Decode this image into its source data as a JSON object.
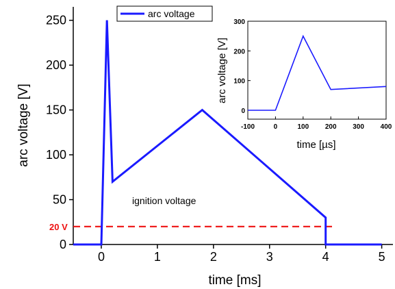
{
  "colors": {
    "series": "#1a1aff",
    "threshold": "#ee1111",
    "axis": "#000000"
  },
  "chart_data": [
    {
      "type": "line",
      "xlabel": "time [ms]",
      "ylabel": "arc voltage [V]",
      "xlim": [
        -0.5,
        5.2
      ],
      "ylim": [
        0,
        265
      ],
      "xticks": [
        0,
        1,
        2,
        3,
        4,
        5
      ],
      "yticks": [
        0,
        50,
        100,
        150,
        200,
        250
      ],
      "series": [
        {
          "name": "arc voltage",
          "x": [
            -0.5,
            0.0,
            0.1,
            0.2,
            1.8,
            4.0,
            4.0,
            5.0
          ],
          "y": [
            0,
            0,
            250,
            70,
            150,
            30,
            0,
            0
          ]
        }
      ],
      "legend": {
        "position": "top-center",
        "entries": [
          "arc voltage"
        ]
      },
      "annotations": [
        {
          "text": "ignition voltage",
          "x": 0.55,
          "y": 45
        }
      ],
      "threshold": {
        "value": 20,
        "label": "20 V"
      }
    },
    {
      "type": "line",
      "inset": true,
      "xlabel": "time [µs]",
      "ylabel": "arc voltage [V]",
      "xlim": [
        -100,
        400
      ],
      "ylim": [
        -30,
        300
      ],
      "xticks": [
        -100,
        0,
        100,
        200,
        300,
        400
      ],
      "yticks": [
        0,
        100,
        200,
        300
      ],
      "series": [
        {
          "x": [
            -100,
            0,
            100,
            200,
            400
          ],
          "y": [
            0,
            0,
            250,
            70,
            80
          ]
        }
      ]
    }
  ]
}
